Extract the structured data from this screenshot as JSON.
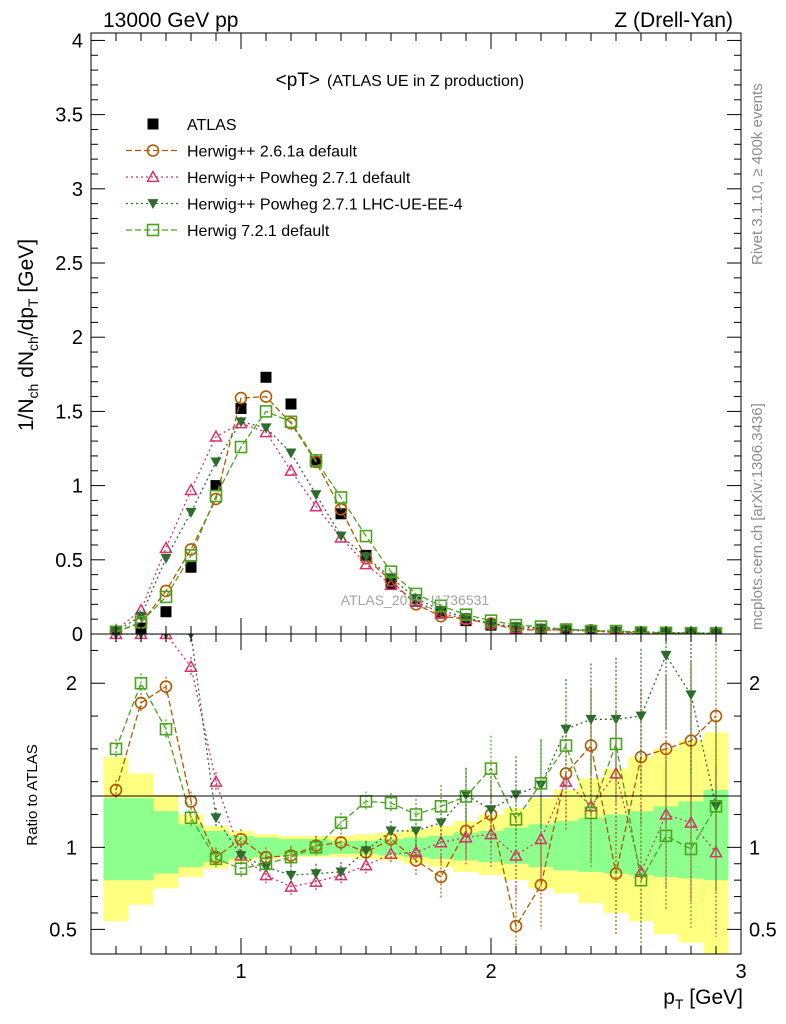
{
  "header": {
    "left": "13000 GeV pp",
    "right": "Z (Drell-Yan)"
  },
  "side_labels": {
    "rivet": "Rivet 3.1.10, ≥ 400k events",
    "mcplots": "mcplots.cern.ch [arXiv:1306.3436]"
  },
  "watermark": "ATLAS_2019_I1736531",
  "colors": {
    "data": "#000000",
    "herwig261a": "#b35900",
    "powheg_default": "#d6336c",
    "powheg_ue": "#2e6b2e",
    "herwig721": "#4aa41d",
    "band_inner": "#8cff8c",
    "band_outer": "#ffff80"
  },
  "chart_data": [
    {
      "type": "scatter",
      "panel": "main",
      "title": "<pT>",
      "title_suffix": "(ATLAS UE in Z production)",
      "xlabel": "p_T [GeV]",
      "ylabel": "1/N_ch dN_ch/dp_T [GeV]",
      "xlim": [
        0.4,
        3.0
      ],
      "ylim": [
        0,
        4.05
      ],
      "yticks": [
        "0",
        "0.5",
        "1",
        "1.5",
        "2",
        "2.5",
        "3",
        "3.5",
        "4"
      ],
      "xticks": [
        "1",
        "2",
        "3"
      ],
      "legend_position": "top-left",
      "x": [
        0.5,
        0.6,
        0.7,
        0.8,
        0.9,
        1.0,
        1.1,
        1.2,
        1.3,
        1.4,
        1.5,
        1.6,
        1.7,
        1.8,
        1.9,
        2.0,
        2.1,
        2.2,
        2.3,
        2.4,
        2.5,
        2.6,
        2.7,
        2.8,
        2.9
      ],
      "series": [
        {
          "name": "ATLAS",
          "key": "data",
          "marker": "square-filled",
          "values": [
            0.01,
            0.04,
            0.15,
            0.45,
            1.0,
            1.52,
            1.73,
            1.55,
            1.16,
            0.81,
            0.53,
            0.34,
            0.22,
            0.14,
            0.09,
            0.06,
            0.04,
            0.03,
            0.02,
            0.015,
            0.01,
            0.007,
            0.005,
            0.004,
            0.003
          ]
        },
        {
          "name": "Herwig++ 2.6.1a default",
          "key": "herwig261a",
          "marker": "circle-open",
          "dash": "6,3",
          "values": [
            0.015,
            0.075,
            0.29,
            0.57,
            0.91,
            1.59,
            1.6,
            1.42,
            1.16,
            0.84,
            0.51,
            0.36,
            0.2,
            0.12,
            0.1,
            0.07,
            0.03,
            0.025,
            0.03,
            0.025,
            0.01,
            0.01,
            0.005,
            0.005,
            0.005
          ]
        },
        {
          "name": "Herwig++ Powheg 2.7.1 default",
          "key": "powheg_default",
          "marker": "triangle-up-open",
          "dash": "2,3",
          "values": [
            0.025,
            0.16,
            0.58,
            0.97,
            1.33,
            1.42,
            1.36,
            1.1,
            0.86,
            0.65,
            0.47,
            0.33,
            0.22,
            0.14,
            0.1,
            0.07,
            0.04,
            0.03,
            0.025,
            0.02,
            0.01,
            0.005,
            0.005,
            0.004,
            0.003
          ]
        },
        {
          "name": "Herwig++ Powheg 2.7.1 LHC-UE-EE-4",
          "key": "powheg_ue",
          "marker": "triangle-down-filled",
          "dash": "2,3",
          "values": [
            0.02,
            0.12,
            0.51,
            0.82,
            1.16,
            1.43,
            1.39,
            1.22,
            0.94,
            0.66,
            0.52,
            0.38,
            0.24,
            0.16,
            0.11,
            0.07,
            0.05,
            0.04,
            0.03,
            0.025,
            0.02,
            0.015,
            0.01,
            0.008,
            0.005
          ]
        },
        {
          "name": "Herwig 7.2.1 default",
          "key": "herwig721",
          "marker": "square-open",
          "dash": "6,3",
          "values": [
            0.015,
            0.08,
            0.25,
            0.53,
            0.93,
            1.26,
            1.5,
            1.43,
            1.17,
            0.92,
            0.66,
            0.42,
            0.27,
            0.19,
            0.13,
            0.09,
            0.06,
            0.05,
            0.03,
            0.02,
            0.02,
            0.01,
            0.008,
            0.005,
            0.004
          ]
        }
      ]
    },
    {
      "type": "scatter",
      "panel": "ratio",
      "ylabel": "Ratio to ATLAS",
      "xlim": [
        0.4,
        3.0
      ],
      "ylim": [
        0.35,
        2.3
      ],
      "yticks": [
        "0.5",
        "1",
        "2"
      ],
      "x": [
        0.5,
        0.6,
        0.7,
        0.8,
        0.9,
        1.0,
        1.1,
        1.2,
        1.3,
        1.4,
        1.5,
        1.6,
        1.7,
        1.8,
        1.9,
        2.0,
        2.1,
        2.2,
        2.3,
        2.4,
        2.5,
        2.6,
        2.7,
        2.8,
        2.9
      ],
      "band_inner": {
        "lo": [
          0.8,
          0.8,
          0.84,
          0.88,
          0.91,
          0.93,
          0.94,
          0.95,
          0.95,
          0.96,
          0.96,
          0.95,
          0.94,
          0.93,
          0.92,
          0.91,
          0.9,
          0.88,
          0.86,
          0.85,
          0.84,
          0.83,
          0.82,
          0.81,
          0.8
        ],
        "hi": [
          1.3,
          1.3,
          1.22,
          1.14,
          1.1,
          1.07,
          1.06,
          1.05,
          1.05,
          1.04,
          1.04,
          1.05,
          1.06,
          1.07,
          1.09,
          1.1,
          1.12,
          1.14,
          1.16,
          1.18,
          1.2,
          1.22,
          1.25,
          1.28,
          1.35
        ]
      },
      "band_outer": {
        "lo": [
          0.55,
          0.65,
          0.75,
          0.82,
          0.87,
          0.91,
          0.93,
          0.94,
          0.94,
          0.94,
          0.93,
          0.92,
          0.9,
          0.88,
          0.85,
          0.83,
          0.8,
          0.75,
          0.72,
          0.66,
          0.6,
          0.55,
          0.47,
          0.42,
          0.35
        ],
        "hi": [
          1.55,
          1.45,
          1.32,
          1.2,
          1.13,
          1.1,
          1.08,
          1.07,
          1.07,
          1.07,
          1.08,
          1.09,
          1.11,
          1.13,
          1.16,
          1.2,
          1.24,
          1.3,
          1.35,
          1.42,
          1.48,
          1.55,
          1.6,
          1.65,
          1.7
        ]
      },
      "series": [
        {
          "key": "herwig261a",
          "marker": "circle-open",
          "dash": "6,3",
          "values": [
            1.35,
            1.88,
            1.98,
            1.28,
            0.94,
            1.05,
            0.94,
            0.95,
            1.01,
            1.03,
            0.97,
            1.05,
            0.92,
            0.82,
            1.1,
            1.2,
            0.52,
            0.77,
            1.45,
            1.62,
            0.84,
            1.55,
            1.6,
            1.65,
            1.8
          ]
        },
        {
          "key": "powheg_default",
          "marker": "triangle-up-open",
          "dash": "2,3",
          "values": [
            2.3,
            2.3,
            2.3,
            2.1,
            1.4,
            0.95,
            0.83,
            0.76,
            0.79,
            0.83,
            0.89,
            0.96,
            0.97,
            1.03,
            1.06,
            1.08,
            0.95,
            1.05,
            1.4,
            1.25,
            1.45,
            0.85,
            1.2,
            1.15,
            0.97
          ]
        },
        {
          "key": "powheg_ue",
          "marker": "triangle-down-filled",
          "dash": "2,3",
          "values": [
            2.3,
            2.3,
            2.3,
            2.3,
            1.18,
            0.95,
            0.88,
            0.83,
            0.84,
            0.85,
            0.98,
            1.1,
            1.1,
            1.15,
            1.32,
            1.23,
            1.32,
            1.38,
            1.72,
            1.78,
            1.78,
            1.8,
            2.17,
            1.93,
            1.25
          ]
        },
        {
          "key": "herwig721",
          "marker": "square-open",
          "dash": "6,3",
          "values": [
            1.6,
            2.0,
            1.72,
            1.18,
            0.93,
            0.87,
            0.9,
            0.94,
            1.0,
            1.15,
            1.28,
            1.27,
            1.2,
            1.25,
            1.31,
            1.48,
            1.17,
            1.39,
            1.62,
            1.21,
            1.63,
            0.8,
            1.07,
            0.99,
            1.25
          ]
        }
      ]
    }
  ]
}
